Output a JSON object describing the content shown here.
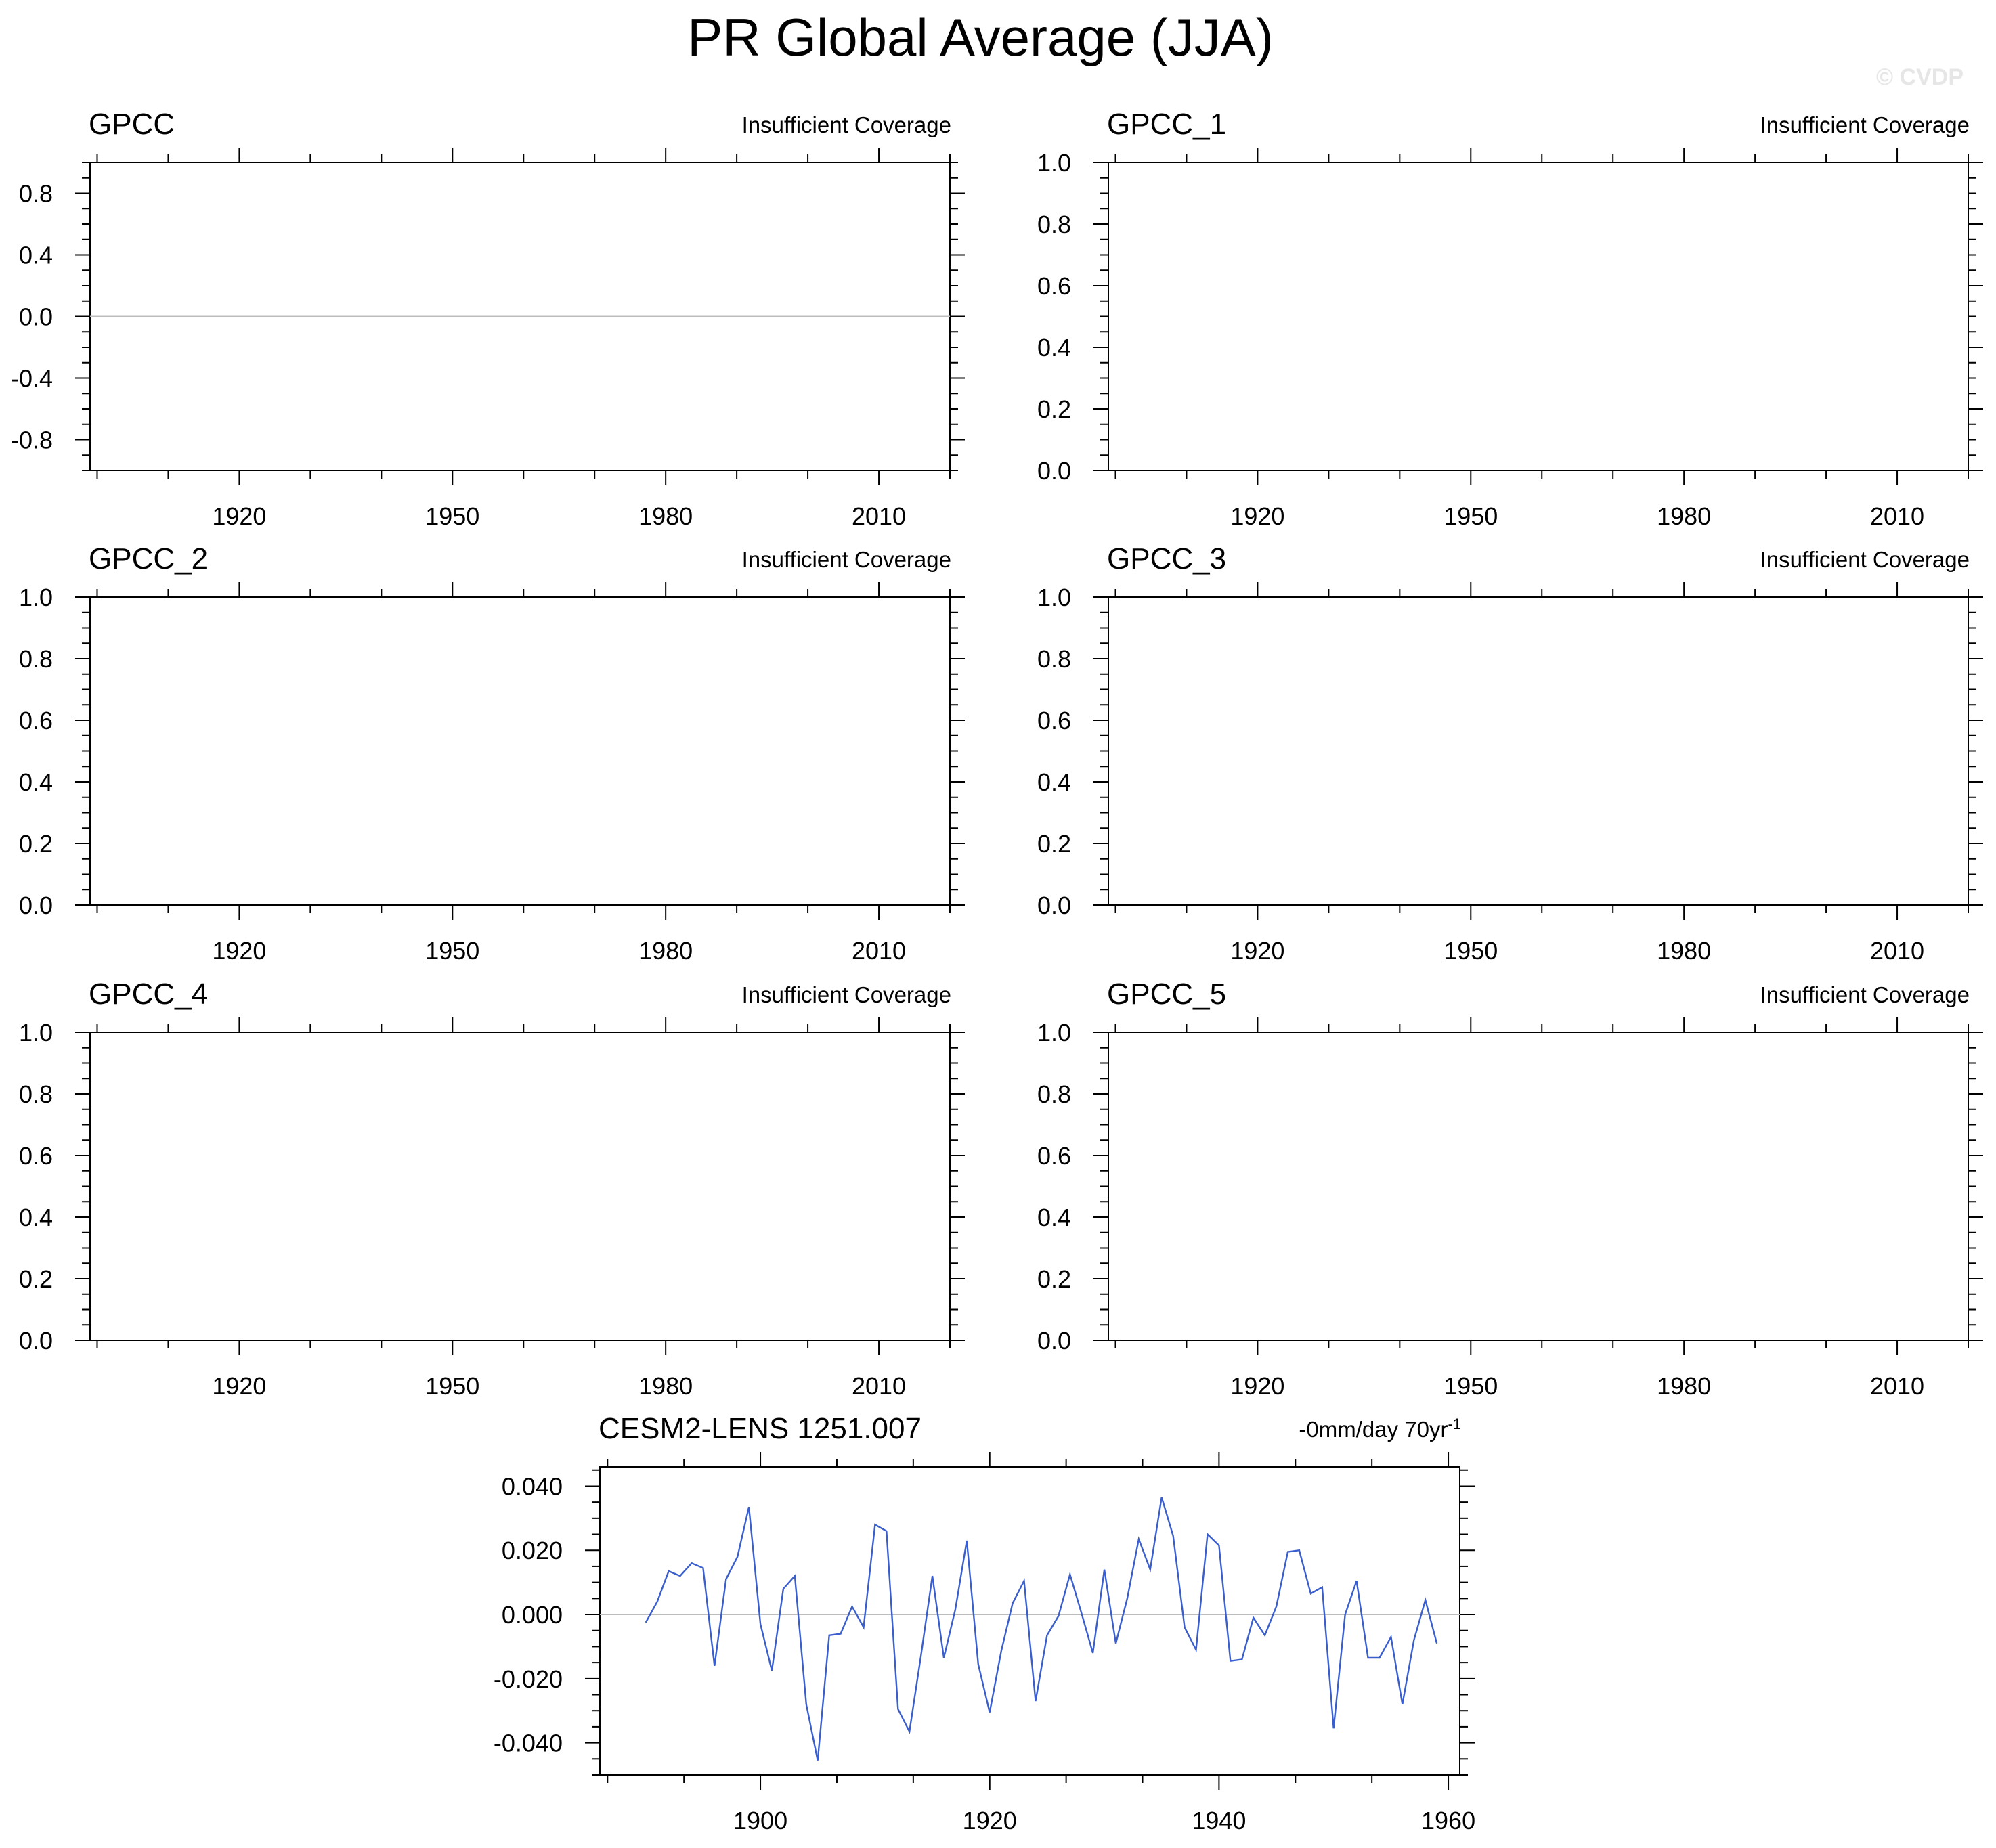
{
  "figure": {
    "title": "PR Global Average (JJA)",
    "watermark": "© CVDP"
  },
  "chart_data": [
    {
      "type": "line",
      "title": "GPCC",
      "right_label": "Insufficient Coverage",
      "xlim": [
        1899,
        2020
      ],
      "ylim": [
        -1.0,
        1.0
      ],
      "xticks": [
        1920,
        1950,
        1980,
        2010
      ],
      "yticks": [
        -0.8,
        -0.4,
        0.0,
        0.4,
        0.8
      ],
      "ytick_labels": [
        "-0.8",
        "-0.4",
        "0.0",
        "0.4",
        "0.8"
      ],
      "zero_line": true,
      "series": []
    },
    {
      "type": "line",
      "title": "GPCC_1",
      "right_label": "Insufficient Coverage",
      "xlim": [
        1899,
        2020
      ],
      "ylim": [
        0.0,
        1.0
      ],
      "xticks": [
        1920,
        1950,
        1980,
        2010
      ],
      "yticks": [
        0.0,
        0.2,
        0.4,
        0.6,
        0.8,
        1.0
      ],
      "ytick_labels": [
        "0.0",
        "0.2",
        "0.4",
        "0.6",
        "0.8",
        "1.0"
      ],
      "zero_line": false,
      "series": []
    },
    {
      "type": "line",
      "title": "GPCC_2",
      "right_label": "Insufficient Coverage",
      "xlim": [
        1899,
        2020
      ],
      "ylim": [
        0.0,
        1.0
      ],
      "xticks": [
        1920,
        1950,
        1980,
        2010
      ],
      "yticks": [
        0.0,
        0.2,
        0.4,
        0.6,
        0.8,
        1.0
      ],
      "ytick_labels": [
        "0.0",
        "0.2",
        "0.4",
        "0.6",
        "0.8",
        "1.0"
      ],
      "zero_line": false,
      "series": []
    },
    {
      "type": "line",
      "title": "GPCC_3",
      "right_label": "Insufficient Coverage",
      "xlim": [
        1899,
        2020
      ],
      "ylim": [
        0.0,
        1.0
      ],
      "xticks": [
        1920,
        1950,
        1980,
        2010
      ],
      "yticks": [
        0.0,
        0.2,
        0.4,
        0.6,
        0.8,
        1.0
      ],
      "ytick_labels": [
        "0.0",
        "0.2",
        "0.4",
        "0.6",
        "0.8",
        "1.0"
      ],
      "zero_line": false,
      "series": []
    },
    {
      "type": "line",
      "title": "GPCC_4",
      "right_label": "Insufficient Coverage",
      "xlim": [
        1899,
        2020
      ],
      "ylim": [
        0.0,
        1.0
      ],
      "xticks": [
        1920,
        1950,
        1980,
        2010
      ],
      "yticks": [
        0.0,
        0.2,
        0.4,
        0.6,
        0.8,
        1.0
      ],
      "ytick_labels": [
        "0.0",
        "0.2",
        "0.4",
        "0.6",
        "0.8",
        "1.0"
      ],
      "zero_line": false,
      "series": []
    },
    {
      "type": "line",
      "title": "GPCC_5",
      "right_label": "Insufficient Coverage",
      "xlim": [
        1899,
        2020
      ],
      "ylim": [
        0.0,
        1.0
      ],
      "xticks": [
        1920,
        1950,
        1980,
        2010
      ],
      "yticks": [
        0.0,
        0.2,
        0.4,
        0.6,
        0.8,
        1.0
      ],
      "ytick_labels": [
        "0.0",
        "0.2",
        "0.4",
        "0.6",
        "0.8",
        "1.0"
      ],
      "zero_line": false,
      "series": []
    },
    {
      "type": "line",
      "title": "CESM2-LENS 1251.007",
      "right_label": "-0mm/day 70yr",
      "right_label_sup": "-1",
      "xlim": [
        1886,
        1961
      ],
      "ylim": [
        -0.05,
        0.046
      ],
      "xticks": [
        1900,
        1920,
        1940,
        1960
      ],
      "yticks": [
        -0.04,
        -0.02,
        0.0,
        0.02,
        0.04
      ],
      "ytick_labels": [
        "-0.040",
        "-0.020",
        "0.000",
        "0.020",
        "0.040"
      ],
      "zero_line": true,
      "series": [
        {
          "color": "#3a5fcd",
          "x": [
            1890,
            1891,
            1892,
            1893,
            1894,
            1895,
            1896,
            1897,
            1898,
            1899,
            1900,
            1901,
            1902,
            1903,
            1904,
            1905,
            1906,
            1907,
            1908,
            1909,
            1910,
            1911,
            1912,
            1913,
            1914,
            1915,
            1916,
            1917,
            1918,
            1919,
            1920,
            1921,
            1922,
            1923,
            1924,
            1925,
            1926,
            1927,
            1928,
            1929,
            1930,
            1931,
            1932,
            1933,
            1934,
            1935,
            1936,
            1937,
            1938,
            1939,
            1940,
            1941,
            1942,
            1943,
            1944,
            1945,
            1946,
            1947,
            1948,
            1949,
            1950,
            1951,
            1952,
            1953,
            1954,
            1955,
            1956,
            1957,
            1958,
            1959,
            1960
          ],
          "y": [
            -0.0025,
            0.004,
            0.0135,
            0.012,
            0.016,
            0.0145,
            -0.016,
            0.011,
            0.018,
            0.0335,
            -0.003,
            -0.0175,
            0.008,
            0.012,
            -0.028,
            -0.0455,
            -0.0065,
            -0.006,
            0.0025,
            -0.004,
            0.028,
            0.026,
            -0.0295,
            -0.0365,
            -0.013,
            0.012,
            -0.0135,
            0.0015,
            0.023,
            -0.0155,
            -0.0305,
            -0.0115,
            0.0035,
            0.0105,
            -0.027,
            -0.0065,
            -0.0005,
            0.0125,
            0.0005,
            -0.012,
            0.014,
            -0.009,
            0.005,
            0.0235,
            0.014,
            0.0365,
            0.0245,
            -0.004,
            -0.011,
            0.025,
            0.0215,
            -0.0145,
            -0.014,
            -0.001,
            -0.0065,
            0.0025,
            0.0195,
            0.02,
            0.0065,
            0.0085,
            -0.0355,
            0.0,
            0.0105,
            -0.0135,
            -0.0135,
            -0.007,
            -0.028,
            -0.008,
            0.0045,
            -0.009,
            null
          ]
        }
      ]
    }
  ]
}
